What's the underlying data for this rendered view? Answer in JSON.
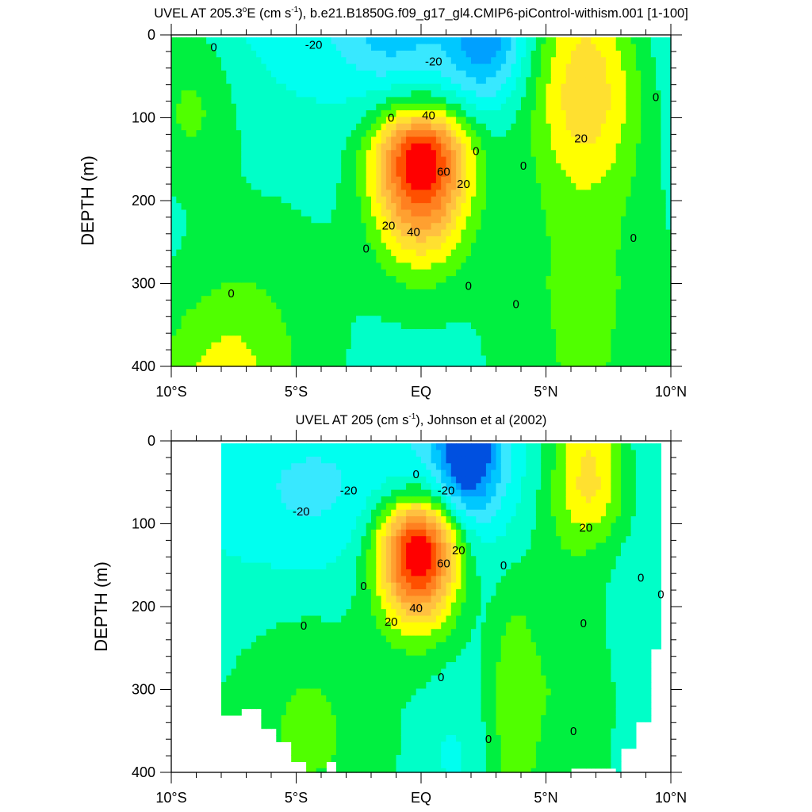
{
  "chart_data": [
    {
      "type": "heatmap",
      "subtype": "filled-contour",
      "title_parts": [
        "UVEL AT 205.3",
        "o",
        "E (cm s",
        "-1",
        "), b.e21.B1850G.f09_g17_gl4.CMIP6-piControl-withism.001 [1-100]"
      ],
      "ylabel": "DEPTH (m)",
      "xlabel": "",
      "xlim": [
        -10,
        10
      ],
      "ylim": [
        400,
        0
      ],
      "xticks": [
        -10,
        -5,
        0,
        5,
        10
      ],
      "xtick_labels": [
        "10°S",
        "5°S",
        "EQ",
        "5°N",
        "10°N"
      ],
      "yticks": [
        0,
        100,
        200,
        300,
        400
      ],
      "ytick_labels": [
        "0",
        "100",
        "200",
        "300",
        "400"
      ],
      "units": "cm/s",
      "background": {
        "surface": -15,
        "deep": -4
      },
      "features": [
        {
          "name": "equatorial-undercurrent",
          "lat": 0,
          "depth": 150,
          "amp": 100,
          "sig_lat": 1.35,
          "sig_up": 42,
          "sig_down": 78
        },
        {
          "name": "necc-core",
          "lat": 6.6,
          "depth": 55,
          "amp": 38,
          "sig_lat": 1.6,
          "sig_up": 120,
          "sig_down": 90
        },
        {
          "name": "necc-deep",
          "lat": 6.5,
          "depth": 300,
          "amp": 16,
          "sig_lat": 2.4,
          "sig_up": 300,
          "sig_down": 300
        },
        {
          "name": "sw-shallow",
          "lat": -9.3,
          "depth": 80,
          "amp": 22,
          "sig_lat": 1.4,
          "sig_up": 90,
          "sig_down": 70
        },
        {
          "name": "sw-deep",
          "lat": -8,
          "depth": 420,
          "amp": 24,
          "sig_lat": 2.0,
          "sig_up": 80,
          "sig_down": 80
        },
        {
          "name": "sec-north",
          "lat": 2.6,
          "depth": 0,
          "amp": -38,
          "sig_lat": 1.1,
          "sig_up": 50,
          "sig_down": 55
        },
        {
          "name": "sec-south",
          "lat": -1.2,
          "depth": 0,
          "amp": -20,
          "sig_lat": 1.5,
          "sig_up": 40,
          "sig_down": 40
        },
        {
          "name": "teal-southwest",
          "lat": -6,
          "depth": 250,
          "amp": 8,
          "sig_lat": 2.5,
          "sig_up": 120,
          "sig_down": 200
        }
      ],
      "missing_regions": [],
      "contour_labels": [
        {
          "text": "0",
          "lat": -8.3,
          "depth": 15
        },
        {
          "text": "-20",
          "lat": -4.3,
          "depth": 12
        },
        {
          "text": "-20",
          "lat": 0.5,
          "depth": 32
        },
        {
          "text": "0",
          "lat": -1.2,
          "depth": 100
        },
        {
          "text": "40",
          "lat": 0.3,
          "depth": 97
        },
        {
          "text": "0",
          "lat": 2.2,
          "depth": 140
        },
        {
          "text": "60",
          "lat": 0.9,
          "depth": 165
        },
        {
          "text": "20",
          "lat": 1.7,
          "depth": 180
        },
        {
          "text": "0",
          "lat": 4.1,
          "depth": 158
        },
        {
          "text": "20",
          "lat": -1.3,
          "depth": 230
        },
        {
          "text": "40",
          "lat": -0.3,
          "depth": 238
        },
        {
          "text": "0",
          "lat": -2.2,
          "depth": 258
        },
        {
          "text": "0",
          "lat": 1.9,
          "depth": 303
        },
        {
          "text": "0",
          "lat": 3.8,
          "depth": 325
        },
        {
          "text": "0",
          "lat": -7.6,
          "depth": 312
        },
        {
          "text": "20",
          "lat": 6.4,
          "depth": 125
        },
        {
          "text": "0",
          "lat": 9.4,
          "depth": 75
        },
        {
          "text": "0",
          "lat": 8.5,
          "depth": 245
        }
      ]
    },
    {
      "type": "heatmap",
      "subtype": "filled-contour",
      "title_parts": [
        "UVEL AT 205 (cm s",
        "-1",
        "), Johnson et al (2002)"
      ],
      "ylabel": "DEPTH (m)",
      "xlabel": "",
      "xlim": [
        -10,
        10
      ],
      "ylim": [
        400,
        0
      ],
      "xticks": [
        -10,
        -5,
        0,
        5,
        10
      ],
      "xtick_labels": [
        "10°S",
        "5°S",
        "EQ",
        "5°N",
        "10°N"
      ],
      "yticks": [
        0,
        100,
        200,
        300,
        400
      ],
      "ytick_labels": [
        "0",
        "100",
        "200",
        "300",
        "400"
      ],
      "units": "cm/s",
      "background": {
        "surface": -12,
        "deep": -4
      },
      "features": [
        {
          "name": "equatorial-undercurrent",
          "lat": -0.1,
          "depth": 132,
          "amp": 105,
          "sig_lat": 1.15,
          "sig_up": 45,
          "sig_down": 62
        },
        {
          "name": "necc-core",
          "lat": 6.8,
          "depth": 45,
          "amp": 38,
          "sig_lat": 1.1,
          "sig_up": 120,
          "sig_down": 55
        },
        {
          "name": "necc-deep",
          "lat": 5.4,
          "depth": 230,
          "amp": 14,
          "sig_lat": 1.5,
          "sig_up": 200,
          "sig_down": 300
        },
        {
          "name": "eq-deep-jet",
          "lat": 3.6,
          "depth": 300,
          "amp": 16,
          "sig_lat": 0.6,
          "sig_up": 90,
          "sig_down": 120
        },
        {
          "name": "sw-deep",
          "lat": -4.5,
          "depth": 360,
          "amp": 16,
          "sig_lat": 2.2,
          "sig_up": 120,
          "sig_down": 80
        },
        {
          "name": "sec-north",
          "lat": 1.9,
          "depth": 0,
          "amp": -55,
          "sig_lat": 0.8,
          "sig_up": 55,
          "sig_down": 55
        },
        {
          "name": "sec-broad",
          "lat": 1.5,
          "depth": 40,
          "amp": -15,
          "sig_lat": 2.0,
          "sig_up": 60,
          "sig_down": 80
        },
        {
          "name": "sec-south",
          "lat": -4.5,
          "depth": 70,
          "amp": -12,
          "sig_lat": 2.2,
          "sig_up": 60,
          "sig_down": 70
        },
        {
          "name": "deep-westward",
          "lat": 1.2,
          "depth": 380,
          "amp": -8,
          "sig_lat": 0.7,
          "sig_up": 50,
          "sig_down": 50
        }
      ],
      "missing_regions": [
        {
          "lat": [
            -10,
            -8
          ],
          "depth": [
            0,
            400
          ]
        },
        {
          "lat": [
            -8,
            -7.3
          ],
          "depth": [
            335,
            400
          ]
        },
        {
          "lat": [
            -7.3,
            -6.4
          ],
          "depth": [
            325,
            400
          ]
        },
        {
          "lat": [
            -6.4,
            -5.8
          ],
          "depth": [
            345,
            400
          ]
        },
        {
          "lat": [
            -5.8,
            -5.2
          ],
          "depth": [
            365,
            400
          ]
        },
        {
          "lat": [
            -5.2,
            -4.6
          ],
          "depth": [
            390,
            400
          ]
        },
        {
          "lat": [
            -3.9,
            -3.5
          ],
          "depth": [
            388,
            400
          ]
        },
        {
          "lat": [
            6.1,
            7.8
          ],
          "depth": [
            395,
            400
          ]
        },
        {
          "lat": [
            8.0,
            8.7
          ],
          "depth": [
            375,
            400
          ]
        },
        {
          "lat": [
            8.7,
            9.1
          ],
          "depth": [
            340,
            400
          ]
        },
        {
          "lat": [
            9.1,
            9.6
          ],
          "depth": [
            255,
            400
          ]
        },
        {
          "lat": [
            9.6,
            10
          ],
          "depth": [
            0,
            400
          ]
        }
      ],
      "contour_labels": [
        {
          "text": "-20",
          "lat": -4.8,
          "depth": 85
        },
        {
          "text": "-20",
          "lat": -2.9,
          "depth": 60
        },
        {
          "text": "0",
          "lat": -0.2,
          "depth": 40
        },
        {
          "text": "-20",
          "lat": 1.0,
          "depth": 60
        },
        {
          "text": "20",
          "lat": 1.5,
          "depth": 132
        },
        {
          "text": "60",
          "lat": 0.9,
          "depth": 148
        },
        {
          "text": "0",
          "lat": 3.3,
          "depth": 150
        },
        {
          "text": "0",
          "lat": -2.3,
          "depth": 175
        },
        {
          "text": "40",
          "lat": -0.2,
          "depth": 202
        },
        {
          "text": "20",
          "lat": -1.2,
          "depth": 218
        },
        {
          "text": "0",
          "lat": -4.7,
          "depth": 223
        },
        {
          "text": "0",
          "lat": 0.8,
          "depth": 285
        },
        {
          "text": "20",
          "lat": 6.6,
          "depth": 105
        },
        {
          "text": "0",
          "lat": 8.8,
          "depth": 165
        },
        {
          "text": "0",
          "lat": 9.6,
          "depth": 185
        },
        {
          "text": "0",
          "lat": 6.5,
          "depth": 220
        },
        {
          "text": "0",
          "lat": 2.7,
          "depth": 360
        },
        {
          "text": "0",
          "lat": 6.1,
          "depth": 350
        }
      ]
    }
  ],
  "color_levels": {
    "bounds": [
      -50,
      -40,
      -30,
      -20,
      -10,
      0,
      10,
      20,
      30,
      40,
      50,
      60,
      70,
      80
    ],
    "colors": [
      "#0050E0",
      "#00A0FF",
      "#00C8FF",
      "#38E8FF",
      "#00FFF0",
      "#00FFC8",
      "#00F040",
      "#50FF00",
      "#FFFF00",
      "#FFE030",
      "#FFC040",
      "#FFA030",
      "#FF8020",
      "#FF5000",
      "#FF0000"
    ]
  }
}
